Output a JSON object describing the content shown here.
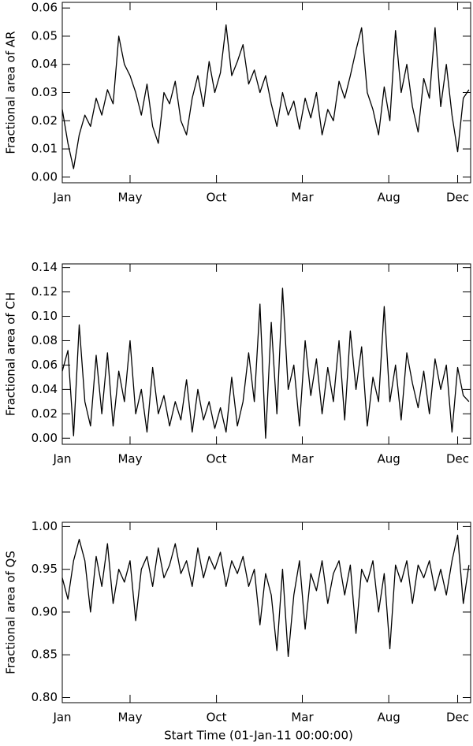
{
  "chart_data": [
    {
      "type": "line",
      "ylabel": "Fractional area of AR",
      "xlim": [
        0,
        723
      ],
      "xticks": [
        {
          "value": 0,
          "label": "Jan"
        },
        {
          "value": 120,
          "label": "May"
        },
        {
          "value": 273,
          "label": "Oct"
        },
        {
          "value": 425,
          "label": "Mar"
        },
        {
          "value": 578,
          "label": "Aug"
        },
        {
          "value": 700,
          "label": "Dec"
        }
      ],
      "ylim": [
        -0.002,
        0.062
      ],
      "yticks": [
        {
          "value": 0,
          "label": "0.00"
        },
        {
          "value": 0.01,
          "label": "0.01"
        },
        {
          "value": 0.02,
          "label": "0.02"
        },
        {
          "value": 0.03,
          "label": "0.03"
        },
        {
          "value": 0.04,
          "label": "0.04"
        },
        {
          "value": 0.05,
          "label": "0.05"
        },
        {
          "value": 0.06,
          "label": "0.06"
        }
      ],
      "x": [
        0,
        10,
        20,
        30,
        40,
        50,
        60,
        70,
        80,
        90,
        100,
        110,
        120,
        130,
        140,
        150,
        160,
        170,
        180,
        190,
        200,
        210,
        220,
        230,
        240,
        250,
        260,
        270,
        280,
        290,
        300,
        310,
        320,
        330,
        340,
        350,
        360,
        370,
        380,
        390,
        400,
        410,
        420,
        430,
        440,
        450,
        460,
        470,
        480,
        490,
        500,
        510,
        520,
        530,
        540,
        550,
        560,
        570,
        580,
        590,
        600,
        610,
        620,
        630,
        640,
        650,
        660,
        670,
        680,
        690,
        700,
        710,
        720
      ],
      "series": [
        {
          "color": "#000000",
          "values": [
            0.024,
            0.012,
            0.003,
            0.015,
            0.022,
            0.018,
            0.028,
            0.022,
            0.031,
            0.026,
            0.05,
            0.04,
            0.036,
            0.03,
            0.022,
            0.033,
            0.018,
            0.012,
            0.03,
            0.026,
            0.034,
            0.02,
            0.015,
            0.028,
            0.036,
            0.025,
            0.041,
            0.03,
            0.037,
            0.054,
            0.036,
            0.041,
            0.047,
            0.033,
            0.038,
            0.03,
            0.036,
            0.026,
            0.018,
            0.03,
            0.022,
            0.027,
            0.017,
            0.028,
            0.021,
            0.03,
            0.015,
            0.024,
            0.02,
            0.034,
            0.028,
            0.036,
            0.045,
            0.053,
            0.03,
            0.024,
            0.015,
            0.032,
            0.02,
            0.052,
            0.03,
            0.04,
            0.025,
            0.016,
            0.035,
            0.028,
            0.053,
            0.025,
            0.04,
            0.022,
            0.009,
            0.028,
            0.031
          ]
        }
      ]
    },
    {
      "type": "line",
      "ylabel": "Fractional area of CH",
      "xlim": [
        0,
        723
      ],
      "xticks": [
        {
          "value": 0,
          "label": "Jan"
        },
        {
          "value": 120,
          "label": "May"
        },
        {
          "value": 273,
          "label": "Oct"
        },
        {
          "value": 425,
          "label": "Mar"
        },
        {
          "value": 578,
          "label": "Aug"
        },
        {
          "value": 700,
          "label": "Dec"
        }
      ],
      "ylim": [
        -0.005,
        0.143
      ],
      "yticks": [
        {
          "value": 0,
          "label": "0.00"
        },
        {
          "value": 0.02,
          "label": "0.02"
        },
        {
          "value": 0.04,
          "label": "0.04"
        },
        {
          "value": 0.06,
          "label": "0.06"
        },
        {
          "value": 0.08,
          "label": "0.08"
        },
        {
          "value": 0.1,
          "label": "0.10"
        },
        {
          "value": 0.12,
          "label": "0.12"
        },
        {
          "value": 0.14,
          "label": "0.14"
        }
      ],
      "x": [
        0,
        10,
        20,
        30,
        40,
        50,
        60,
        70,
        80,
        90,
        100,
        110,
        120,
        130,
        140,
        150,
        160,
        170,
        180,
        190,
        200,
        210,
        220,
        230,
        240,
        250,
        260,
        270,
        280,
        290,
        300,
        310,
        320,
        330,
        340,
        350,
        360,
        370,
        380,
        390,
        400,
        410,
        420,
        430,
        440,
        450,
        460,
        470,
        480,
        490,
        500,
        510,
        520,
        530,
        540,
        550,
        560,
        570,
        580,
        590,
        600,
        610,
        620,
        630,
        640,
        650,
        660,
        670,
        680,
        690,
        700,
        710,
        720
      ],
      "series": [
        {
          "color": "#000000",
          "values": [
            0.055,
            0.072,
            0.002,
            0.093,
            0.03,
            0.01,
            0.068,
            0.02,
            0.07,
            0.01,
            0.055,
            0.03,
            0.08,
            0.02,
            0.04,
            0.005,
            0.058,
            0.02,
            0.035,
            0.01,
            0.03,
            0.015,
            0.048,
            0.005,
            0.04,
            0.015,
            0.03,
            0.008,
            0.025,
            0.005,
            0.05,
            0.01,
            0.03,
            0.07,
            0.03,
            0.11,
            0.0,
            0.095,
            0.02,
            0.123,
            0.04,
            0.06,
            0.01,
            0.08,
            0.035,
            0.065,
            0.02,
            0.058,
            0.03,
            0.08,
            0.015,
            0.088,
            0.04,
            0.075,
            0.01,
            0.05,
            0.03,
            0.108,
            0.03,
            0.06,
            0.015,
            0.07,
            0.045,
            0.025,
            0.055,
            0.02,
            0.065,
            0.04,
            0.06,
            0.005,
            0.058,
            0.035,
            0.03
          ]
        }
      ]
    },
    {
      "type": "line",
      "ylabel": "Fractional area of QS",
      "xlabel": "Start Time (01-Jan-11 00:00:00)",
      "xlim": [
        0,
        723
      ],
      "xticks": [
        {
          "value": 0,
          "label": "Jan"
        },
        {
          "value": 120,
          "label": "May"
        },
        {
          "value": 273,
          "label": "Oct"
        },
        {
          "value": 425,
          "label": "Mar"
        },
        {
          "value": 578,
          "label": "Aug"
        },
        {
          "value": 700,
          "label": "Dec"
        }
      ],
      "ylim": [
        0.794,
        1.005
      ],
      "yticks": [
        {
          "value": 0.8,
          "label": "0.80"
        },
        {
          "value": 0.85,
          "label": "0.85"
        },
        {
          "value": 0.9,
          "label": "0.90"
        },
        {
          "value": 0.95,
          "label": "0.95"
        },
        {
          "value": 1,
          "label": "1.00"
        }
      ],
      "x": [
        0,
        10,
        20,
        30,
        40,
        50,
        60,
        70,
        80,
        90,
        100,
        110,
        120,
        130,
        140,
        150,
        160,
        170,
        180,
        190,
        200,
        210,
        220,
        230,
        240,
        250,
        260,
        270,
        280,
        290,
        300,
        310,
        320,
        330,
        340,
        350,
        360,
        370,
        380,
        390,
        400,
        410,
        420,
        430,
        440,
        450,
        460,
        470,
        480,
        490,
        500,
        510,
        520,
        530,
        540,
        550,
        560,
        570,
        580,
        590,
        600,
        610,
        620,
        630,
        640,
        650,
        660,
        670,
        680,
        690,
        700,
        710,
        720
      ],
      "series": [
        {
          "color": "#000000",
          "values": [
            0.94,
            0.915,
            0.96,
            0.985,
            0.96,
            0.9,
            0.965,
            0.93,
            0.98,
            0.91,
            0.95,
            0.935,
            0.96,
            0.89,
            0.95,
            0.965,
            0.93,
            0.975,
            0.94,
            0.955,
            0.98,
            0.945,
            0.96,
            0.93,
            0.975,
            0.94,
            0.965,
            0.95,
            0.97,
            0.93,
            0.96,
            0.945,
            0.965,
            0.93,
            0.95,
            0.885,
            0.945,
            0.92,
            0.855,
            0.95,
            0.848,
            0.92,
            0.96,
            0.88,
            0.945,
            0.925,
            0.96,
            0.91,
            0.945,
            0.96,
            0.92,
            0.955,
            0.875,
            0.95,
            0.935,
            0.96,
            0.9,
            0.945,
            0.857,
            0.955,
            0.935,
            0.96,
            0.91,
            0.955,
            0.94,
            0.96,
            0.925,
            0.95,
            0.92,
            0.96,
            0.99,
            0.91,
            0.955
          ]
        }
      ]
    }
  ]
}
